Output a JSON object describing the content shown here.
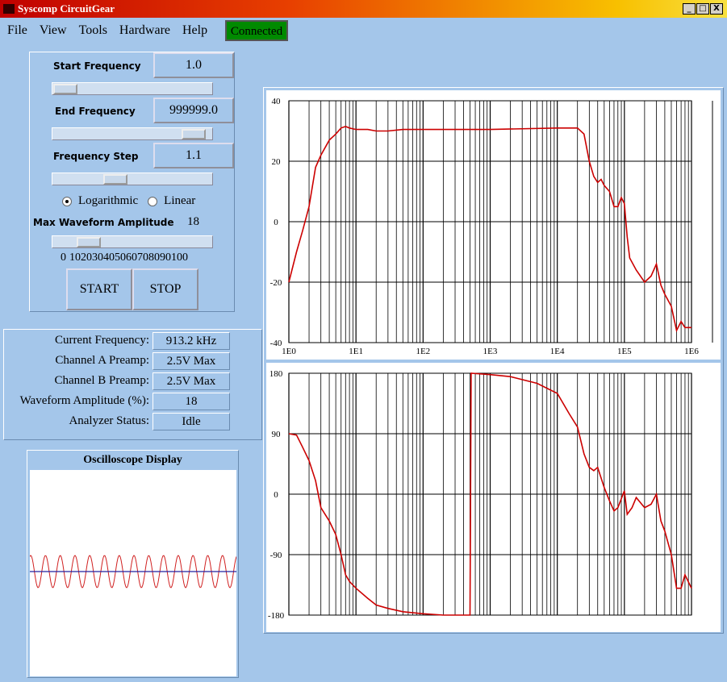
{
  "window": {
    "title": "Syscomp CircuitGear"
  },
  "menu": [
    "File",
    "View",
    "Tools",
    "Hardware",
    "Help"
  ],
  "status_badge": "Connected",
  "controls": {
    "start_frequency": {
      "label": "Start Frequency",
      "value": "1.0"
    },
    "end_frequency": {
      "label": "End Frequency",
      "value": "999999.0"
    },
    "frequency_step": {
      "label": "Frequency Step",
      "value": "1.1"
    },
    "scale_options": [
      "Logarithmic",
      "Linear"
    ],
    "max_amplitude": {
      "label": "Max Waveform Amplitude",
      "value": "18"
    },
    "amplitude_scale": [
      0,
      10,
      20,
      30,
      40,
      50,
      60,
      70,
      80,
      90,
      100
    ],
    "buttons": [
      "START",
      "STOP"
    ]
  },
  "status": {
    "rows": [
      [
        "Current Frequency:",
        "913.2 kHz"
      ],
      [
        "Channel A Preamp:",
        "2.5V Max"
      ],
      [
        "Channel B Preamp:",
        "2.5V Max"
      ],
      [
        "Waveform Amplitude (%):",
        "18"
      ],
      [
        "Analyzer Status:",
        "Idle"
      ]
    ]
  },
  "oscilloscope": {
    "title": "Oscilloscope Display"
  },
  "chart_data": [
    {
      "type": "line",
      "log_x": true,
      "grid": true,
      "color": "#cc0000",
      "xlim": [
        1,
        1000000
      ],
      "xticks": [
        {
          "value": 1,
          "label": "1E0"
        },
        {
          "value": 10,
          "label": "1E1"
        },
        {
          "value": 100,
          "label": "1E2"
        },
        {
          "value": 1000,
          "label": "1E3"
        },
        {
          "value": 10000,
          "label": "1E4"
        },
        {
          "value": 100000,
          "label": "1E5"
        },
        {
          "value": 1000000,
          "label": "1E6"
        }
      ],
      "ylim": [
        -40,
        40
      ],
      "yticks": [
        -40,
        -20,
        0,
        20,
        40
      ],
      "x": [
        1,
        1.3,
        1.6,
        2,
        2.5,
        3,
        4,
        5,
        6,
        7,
        8,
        10,
        15,
        20,
        30,
        50,
        100,
        1000,
        10000,
        20000,
        25000,
        30000,
        35000,
        40000,
        45000,
        50000,
        60000,
        70000,
        80000,
        90000,
        100000,
        110000,
        120000,
        150000,
        200000,
        250000,
        300000,
        350000,
        400000,
        500000,
        600000,
        700000,
        800000,
        1000000
      ],
      "values": [
        -20,
        -10,
        -3,
        5,
        18,
        22,
        27,
        29,
        31,
        31.5,
        31,
        30.5,
        30.5,
        30,
        30,
        30.5,
        30.5,
        30.5,
        31,
        31,
        29,
        20,
        15,
        13,
        14,
        12,
        10,
        5,
        5,
        8,
        6,
        -5,
        -12,
        -16,
        -20,
        -18,
        -14,
        -21,
        -24,
        -28,
        -36,
        -33,
        -35,
        -35
      ]
    },
    {
      "type": "line",
      "log_x": true,
      "grid": true,
      "color": "#cc0000",
      "xlim": [
        1,
        1000000
      ],
      "ylim": [
        -180,
        180
      ],
      "yticks": [
        -180,
        -90,
        0,
        90,
        180
      ],
      "x": [
        1,
        1.3,
        1.6,
        2,
        2.5,
        3,
        4,
        5,
        6,
        7,
        8,
        10,
        15,
        20,
        30,
        50,
        100,
        200,
        500,
        520,
        1000,
        2000,
        5000,
        10000,
        15000,
        20000,
        25000,
        30000,
        35000,
        40000,
        50000,
        60000,
        70000,
        80000,
        100000,
        110000,
        130000,
        150000,
        200000,
        250000,
        300000,
        350000,
        400000,
        500000,
        600000,
        700000,
        800000,
        1000000
      ],
      "values": [
        90,
        88,
        70,
        50,
        20,
        -20,
        -40,
        -60,
        -90,
        -120,
        -130,
        -140,
        -155,
        -165,
        -170,
        -175,
        -178,
        -180,
        -180,
        180,
        178,
        175,
        165,
        150,
        120,
        100,
        60,
        40,
        35,
        40,
        10,
        -10,
        -25,
        -20,
        5,
        -30,
        -20,
        -5,
        -20,
        -15,
        0,
        -40,
        -55,
        -90,
        -140,
        -140,
        -120,
        -140
      ]
    }
  ]
}
